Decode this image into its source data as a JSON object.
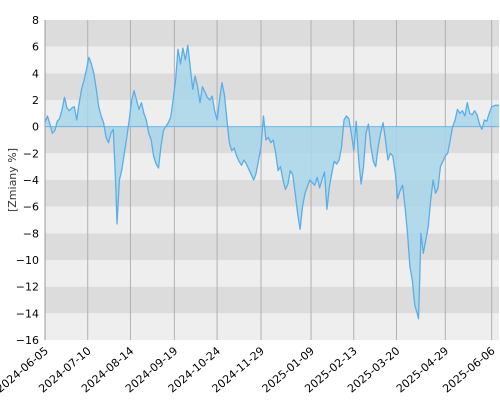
{
  "chart_data": {
    "type": "area",
    "title": "",
    "xlabel": "",
    "ylabel": "[Zmiany %]",
    "ylim": [
      -16,
      8
    ],
    "yticks": [
      8,
      6,
      4,
      2,
      0,
      -2,
      -4,
      -6,
      -8,
      -10,
      -12,
      -14,
      -16
    ],
    "xlim": [
      "2024-06-05",
      "2025-06-12"
    ],
    "xticks": [
      "2024-06-05",
      "2024-07-10",
      "2024-08-14",
      "2024-09-19",
      "2024-10-24",
      "2024-11-29",
      "2025-01-09",
      "2025-02-13",
      "2025-03-20",
      "2025-04-29",
      "2025-06-06"
    ],
    "grid": true,
    "background": "alternating gray horizontal bands",
    "colors": {
      "line": "#5aaee6",
      "fill": "#a8d6ea",
      "band_dark": "#dcdcdc",
      "band_light": "#eeeeee",
      "grid": "#b0b0b0"
    },
    "series": [
      {
        "points": [
          [
            "2024-06-05",
            0.3
          ],
          [
            "2024-06-07",
            0.8
          ],
          [
            "2024-06-09",
            0.2
          ],
          [
            "2024-06-11",
            -0.5
          ],
          [
            "2024-06-13",
            -0.3
          ],
          [
            "2024-06-15",
            0.4
          ],
          [
            "2024-06-17",
            0.6
          ],
          [
            "2024-06-19",
            1.3
          ],
          [
            "2024-06-21",
            2.2
          ],
          [
            "2024-06-23",
            1.4
          ],
          [
            "2024-06-25",
            1.2
          ],
          [
            "2024-06-27",
            1.4
          ],
          [
            "2024-06-29",
            1.5
          ],
          [
            "2024-07-01",
            0.5
          ],
          [
            "2024-07-03",
            1.8
          ],
          [
            "2024-07-05",
            2.8
          ],
          [
            "2024-07-07",
            3.5
          ],
          [
            "2024-07-09",
            4.3
          ],
          [
            "2024-07-11",
            5.2
          ],
          [
            "2024-07-13",
            4.7
          ],
          [
            "2024-07-15",
            4.0
          ],
          [
            "2024-07-17",
            2.8
          ],
          [
            "2024-07-19",
            1.5
          ],
          [
            "2024-07-21",
            0.8
          ],
          [
            "2024-07-23",
            0.3
          ],
          [
            "2024-07-25",
            -0.8
          ],
          [
            "2024-07-27",
            -1.2
          ],
          [
            "2024-07-29",
            -0.5
          ],
          [
            "2024-07-31",
            -0.2
          ],
          [
            "2024-08-02",
            -4.5
          ],
          [
            "2024-08-03",
            -7.3
          ],
          [
            "2024-08-05",
            -4.0
          ],
          [
            "2024-08-07",
            -3.2
          ],
          [
            "2024-08-09",
            -2.0
          ],
          [
            "2024-08-11",
            -0.8
          ],
          [
            "2024-08-13",
            0.5
          ],
          [
            "2024-08-15",
            2.0
          ],
          [
            "2024-08-17",
            2.7
          ],
          [
            "2024-08-19",
            2.0
          ],
          [
            "2024-08-21",
            1.3
          ],
          [
            "2024-08-23",
            1.8
          ],
          [
            "2024-08-25",
            1.0
          ],
          [
            "2024-08-27",
            0.5
          ],
          [
            "2024-08-29",
            -0.5
          ],
          [
            "2024-08-31",
            -1.0
          ],
          [
            "2024-09-02",
            -2.2
          ],
          [
            "2024-09-04",
            -2.8
          ],
          [
            "2024-09-06",
            -3.1
          ],
          [
            "2024-09-08",
            -1.5
          ],
          [
            "2024-09-10",
            -0.3
          ],
          [
            "2024-09-12",
            0.0
          ],
          [
            "2024-09-14",
            0.3
          ],
          [
            "2024-09-16",
            0.7
          ],
          [
            "2024-09-18",
            2.0
          ],
          [
            "2024-09-20",
            3.5
          ],
          [
            "2024-09-22",
            5.8
          ],
          [
            "2024-09-24",
            4.7
          ],
          [
            "2024-09-26",
            5.9
          ],
          [
            "2024-09-28",
            5.0
          ],
          [
            "2024-09-30",
            6.1
          ],
          [
            "2024-10-02",
            4.5
          ],
          [
            "2024-10-04",
            2.8
          ],
          [
            "2024-10-06",
            3.8
          ],
          [
            "2024-10-08",
            3.0
          ],
          [
            "2024-10-10",
            1.8
          ],
          [
            "2024-10-12",
            3.0
          ],
          [
            "2024-10-14",
            2.6
          ],
          [
            "2024-10-16",
            2.2
          ],
          [
            "2024-10-18",
            2.0
          ],
          [
            "2024-10-20",
            2.3
          ],
          [
            "2024-10-22",
            1.2
          ],
          [
            "2024-10-24",
            0.5
          ],
          [
            "2024-10-26",
            2.0
          ],
          [
            "2024-10-28",
            3.3
          ],
          [
            "2024-10-30",
            2.4
          ],
          [
            "2024-11-01",
            0.6
          ],
          [
            "2024-11-03",
            -1.2
          ],
          [
            "2024-11-05",
            -1.8
          ],
          [
            "2024-11-07",
            -1.6
          ],
          [
            "2024-11-09",
            -2.2
          ],
          [
            "2024-11-11",
            -2.6
          ],
          [
            "2024-11-13",
            -2.9
          ],
          [
            "2024-11-15",
            -2.5
          ],
          [
            "2024-11-17",
            -2.8
          ],
          [
            "2024-11-19",
            -3.2
          ],
          [
            "2024-11-21",
            -3.6
          ],
          [
            "2024-11-23",
            -4.0
          ],
          [
            "2024-11-25",
            -3.5
          ],
          [
            "2024-11-27",
            -2.5
          ],
          [
            "2024-11-29",
            -1.5
          ],
          [
            "2024-12-01",
            0.8
          ],
          [
            "2024-12-03",
            -1.0
          ],
          [
            "2024-12-05",
            -0.8
          ],
          [
            "2024-12-07",
            -1.2
          ],
          [
            "2024-12-09",
            -1.0
          ],
          [
            "2024-12-11",
            -2.0
          ],
          [
            "2024-12-13",
            -3.3
          ],
          [
            "2024-12-15",
            -3.0
          ],
          [
            "2024-12-17",
            -4.0
          ],
          [
            "2024-12-19",
            -4.7
          ],
          [
            "2024-12-21",
            -4.3
          ],
          [
            "2024-12-23",
            -3.3
          ],
          [
            "2024-12-25",
            -3.6
          ],
          [
            "2024-12-27",
            -5.0
          ],
          [
            "2024-12-29",
            -6.5
          ],
          [
            "2024-12-31",
            -7.7
          ],
          [
            "2025-01-02",
            -6.0
          ],
          [
            "2025-01-04",
            -5.0
          ],
          [
            "2025-01-06",
            -4.5
          ],
          [
            "2025-01-08",
            -4.0
          ],
          [
            "2025-01-10",
            -4.2
          ],
          [
            "2025-01-12",
            -4.4
          ],
          [
            "2025-01-14",
            -3.8
          ],
          [
            "2025-01-16",
            -4.6
          ],
          [
            "2025-01-18",
            -4.0
          ],
          [
            "2025-01-20",
            -3.4
          ],
          [
            "2025-01-22",
            -6.2
          ],
          [
            "2025-01-24",
            -4.5
          ],
          [
            "2025-01-26",
            -3.5
          ],
          [
            "2025-01-28",
            -2.6
          ],
          [
            "2025-01-30",
            -2.8
          ],
          [
            "2025-02-01",
            -2.5
          ],
          [
            "2025-02-03",
            -1.5
          ],
          [
            "2025-02-05",
            0.5
          ],
          [
            "2025-02-07",
            0.8
          ],
          [
            "2025-02-09",
            0.6
          ],
          [
            "2025-02-11",
            -0.5
          ],
          [
            "2025-02-13",
            -1.8
          ],
          [
            "2025-02-15",
            0.4
          ],
          [
            "2025-02-17",
            -2.5
          ],
          [
            "2025-02-19",
            -4.3
          ],
          [
            "2025-02-21",
            -3.0
          ],
          [
            "2025-02-23",
            -0.5
          ],
          [
            "2025-02-25",
            0.2
          ],
          [
            "2025-02-27",
            -1.5
          ],
          [
            "2025-03-01",
            -2.6
          ],
          [
            "2025-03-03",
            -3.0
          ],
          [
            "2025-03-05",
            -1.5
          ],
          [
            "2025-03-07",
            -0.5
          ],
          [
            "2025-03-09",
            0.3
          ],
          [
            "2025-03-11",
            -1.0
          ],
          [
            "2025-03-13",
            -2.5
          ],
          [
            "2025-03-15",
            -2.0
          ],
          [
            "2025-03-17",
            -2.2
          ],
          [
            "2025-03-19",
            -3.5
          ],
          [
            "2025-03-21",
            -5.4
          ],
          [
            "2025-03-23",
            -4.8
          ],
          [
            "2025-03-25",
            -4.4
          ],
          [
            "2025-03-27",
            -6.0
          ],
          [
            "2025-03-29",
            -8.0
          ],
          [
            "2025-03-31",
            -10.5
          ],
          [
            "2025-04-02",
            -11.5
          ],
          [
            "2025-04-04",
            -13.4
          ],
          [
            "2025-04-06",
            -14.0
          ],
          [
            "2025-04-07",
            -14.4
          ],
          [
            "2025-04-08",
            -11.5
          ],
          [
            "2025-04-09",
            -8.0
          ],
          [
            "2025-04-11",
            -9.5
          ],
          [
            "2025-04-13",
            -8.5
          ],
          [
            "2025-04-15",
            -7.5
          ],
          [
            "2025-04-17",
            -5.5
          ],
          [
            "2025-04-19",
            -4.0
          ],
          [
            "2025-04-21",
            -5.0
          ],
          [
            "2025-04-23",
            -4.6
          ],
          [
            "2025-04-25",
            -3.0
          ],
          [
            "2025-04-27",
            -2.6
          ],
          [
            "2025-04-29",
            -2.2
          ],
          [
            "2025-05-01",
            -2.0
          ],
          [
            "2025-05-03",
            -1.0
          ],
          [
            "2025-05-05",
            0.0
          ],
          [
            "2025-05-07",
            0.5
          ],
          [
            "2025-05-09",
            1.3
          ],
          [
            "2025-05-11",
            1.0
          ],
          [
            "2025-05-13",
            1.2
          ],
          [
            "2025-05-15",
            0.8
          ],
          [
            "2025-05-17",
            1.8
          ],
          [
            "2025-05-19",
            1.0
          ],
          [
            "2025-05-21",
            0.9
          ],
          [
            "2025-05-23",
            1.2
          ],
          [
            "2025-05-25",
            0.9
          ],
          [
            "2025-05-27",
            0.2
          ],
          [
            "2025-05-29",
            -0.2
          ],
          [
            "2025-05-31",
            0.5
          ],
          [
            "2025-06-02",
            0.4
          ],
          [
            "2025-06-04",
            1.0
          ],
          [
            "2025-06-06",
            1.5
          ],
          [
            "2025-06-09",
            1.6
          ],
          [
            "2025-06-12",
            1.6
          ]
        ]
      }
    ]
  }
}
